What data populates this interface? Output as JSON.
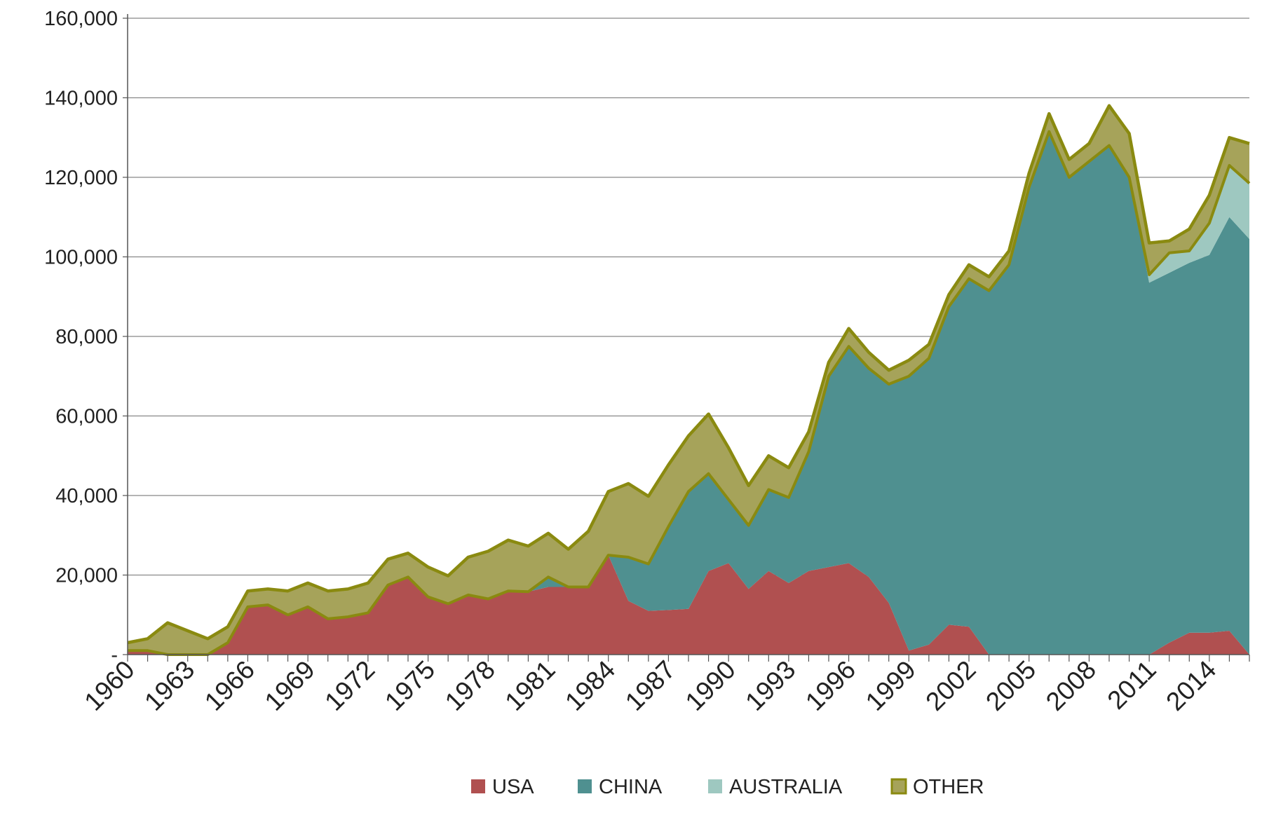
{
  "chart_data": {
    "type": "area",
    "stacked": true,
    "x": [
      1960,
      1961,
      1962,
      1963,
      1964,
      1965,
      1966,
      1967,
      1968,
      1969,
      1970,
      1971,
      1972,
      1973,
      1974,
      1975,
      1976,
      1977,
      1978,
      1979,
      1980,
      1981,
      1982,
      1983,
      1984,
      1985,
      1986,
      1987,
      1988,
      1989,
      1990,
      1991,
      1992,
      1993,
      1994,
      1995,
      1996,
      1997,
      1998,
      1999,
      2000,
      2001,
      2002,
      2003,
      2004,
      2005,
      2006,
      2007,
      2008,
      2009,
      2010,
      2011,
      2012,
      2013,
      2014,
      2015,
      2016
    ],
    "x_tick_labels": [
      "1960",
      "1963",
      "1966",
      "1969",
      "1972",
      "1975",
      "1978",
      "1981",
      "1984",
      "1987",
      "1990",
      "1993",
      "1996",
      "1999",
      "2002",
      "2005",
      "2008",
      "2011",
      "2014"
    ],
    "y_tick_labels": [
      "-",
      "20,000",
      "40,000",
      "60,000",
      "80,000",
      "100,000",
      "120,000",
      "140,000",
      "160,000"
    ],
    "ylim": [
      0,
      160000
    ],
    "grid": true,
    "legend_position": "bottom",
    "series": [
      {
        "name": "USA",
        "color": "#b05050",
        "values": [
          1000,
          1000,
          0,
          0,
          0,
          3000,
          12000,
          12500,
          10000,
          12000,
          9000,
          9500,
          10500,
          17500,
          19500,
          14500,
          12800,
          15000,
          14000,
          16000,
          15800,
          17000,
          17000,
          17000,
          25000,
          13500,
          11000,
          11200,
          11500,
          21000,
          23000,
          16500,
          21000,
          18000,
          21000,
          22000,
          23000,
          19500,
          13000,
          1000,
          2500,
          7500,
          7000,
          0,
          0,
          0,
          0,
          0,
          0,
          0,
          0,
          0,
          3000,
          5500,
          5500,
          6000,
          0
        ]
      },
      {
        "name": "CHINA",
        "color": "#4f9090",
        "values": [
          0,
          0,
          0,
          0,
          0,
          0,
          0,
          0,
          0,
          0,
          0,
          0,
          0,
          0,
          0,
          0,
          0,
          0,
          0,
          0,
          0,
          2500,
          0,
          0,
          0,
          11000,
          11800,
          21000,
          29500,
          24500,
          16000,
          16000,
          20500,
          21500,
          30000,
          48000,
          54500,
          52500,
          55000,
          69000,
          72000,
          80000,
          87500,
          91500,
          98000,
          117500,
          131500,
          120000,
          124000,
          128000,
          120000,
          93500,
          93000,
          93000,
          95000,
          104000,
          104500
        ]
      },
      {
        "name": "AUSTRALIA",
        "color": "#9ec8c0",
        "values": [
          0,
          0,
          0,
          0,
          0,
          0,
          0,
          0,
          0,
          0,
          0,
          0,
          0,
          0,
          0,
          0,
          0,
          0,
          0,
          0,
          0,
          0,
          0,
          0,
          0,
          0,
          0,
          0,
          0,
          0,
          0,
          0,
          0,
          0,
          0,
          0,
          0,
          0,
          0,
          0,
          0,
          0,
          0,
          0,
          0,
          0,
          0,
          0,
          0,
          0,
          0,
          2000,
          5000,
          3000,
          8000,
          13000,
          14000
        ]
      },
      {
        "name": "OTHER",
        "color": "#a6a35a",
        "values": [
          2000,
          3000,
          8000,
          6000,
          4000,
          4000,
          4000,
          4000,
          6000,
          6000,
          7000,
          7000,
          7500,
          6500,
          6000,
          7500,
          7000,
          9500,
          12000,
          12800,
          11500,
          11000,
          9500,
          14000,
          16000,
          18500,
          17000,
          15500,
          14000,
          15000,
          13000,
          10000,
          8500,
          7500,
          5000,
          3500,
          4500,
          4000,
          3500,
          4000,
          3500,
          3000,
          3500,
          3500,
          3500,
          3500,
          4500,
          4500,
          4500,
          10000,
          11000,
          8000,
          3000,
          5500,
          7000,
          7000,
          10000
        ]
      }
    ]
  },
  "legend": {
    "items": [
      {
        "label": "USA",
        "color": "#b05050"
      },
      {
        "label": "CHINA",
        "color": "#4f9090"
      },
      {
        "label": "AUSTRALIA",
        "color": "#9ec8c0"
      },
      {
        "label": "OTHER",
        "color": "#a6a35a"
      }
    ]
  },
  "colors": {
    "line_accent": "#8a8a10",
    "grid": "#888888",
    "axis": "#555555",
    "text": "#222222"
  }
}
